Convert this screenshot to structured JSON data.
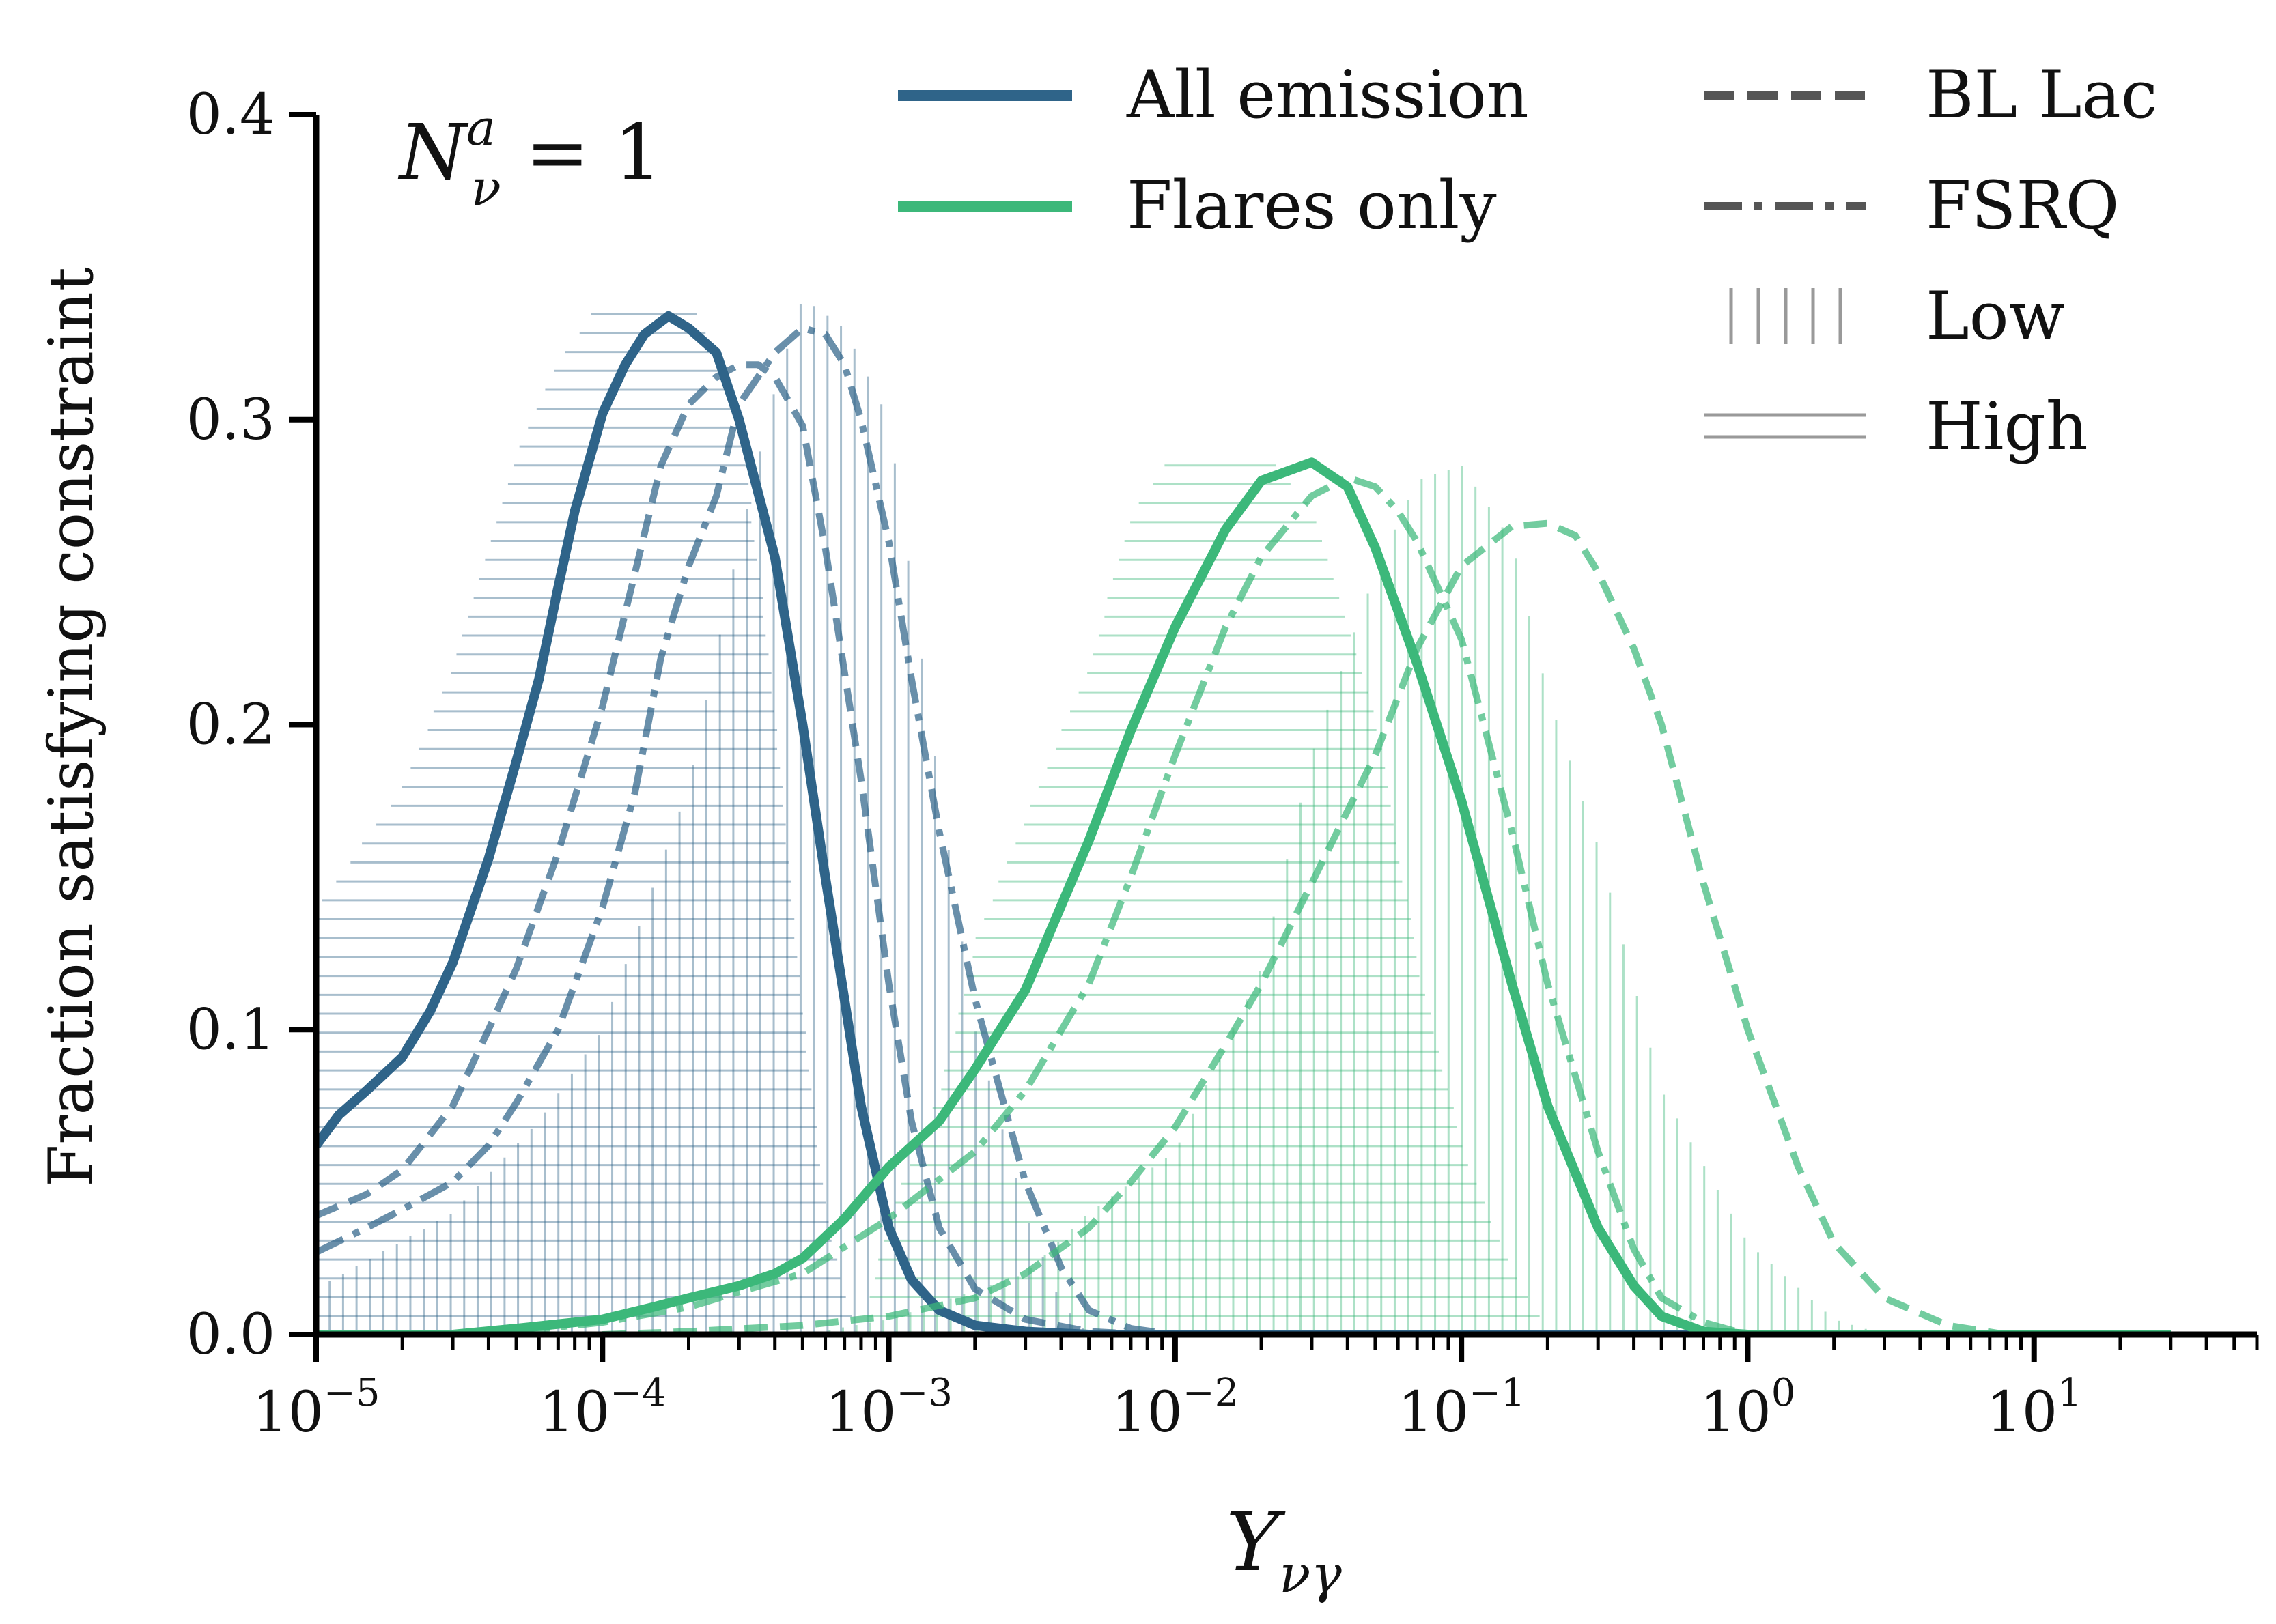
{
  "colors": {
    "all_emission": "#2f6489",
    "flares_only": "#3cb87a",
    "legend_neutral": "#555555",
    "hatch_key": "#999999",
    "axis": "#000000"
  },
  "chart_data": {
    "type": "line",
    "title": "",
    "annotation": {
      "main": "N",
      "sup": "a",
      "sub": "ν",
      "rest": " = 1"
    },
    "xlabel": {
      "main": "Y",
      "sub": "νγ"
    },
    "ylabel": "Fraction satisfying constraint",
    "xscale": "log",
    "xlim": [
      1e-05,
      60
    ],
    "ylim": [
      0,
      0.4
    ],
    "yticks": [
      0.0,
      0.1,
      0.2,
      0.3,
      0.4
    ],
    "ytick_labels": [
      "0.0",
      "0.1",
      "0.2",
      "0.3",
      "0.4"
    ],
    "xticks": [
      1e-05,
      0.0001,
      0.001,
      0.01,
      0.1,
      1,
      10
    ],
    "xtick_labels": [
      {
        "base": "10",
        "exp": "−5"
      },
      {
        "base": "10",
        "exp": "−4"
      },
      {
        "base": "10",
        "exp": "−3"
      },
      {
        "base": "10",
        "exp": "−2"
      },
      {
        "base": "10",
        "exp": "−1"
      },
      {
        "base": "10",
        "exp": "0"
      },
      {
        "base": "10",
        "exp": "1"
      }
    ],
    "grid": false,
    "legend": {
      "placement": "top-right",
      "entries": [
        {
          "label": "All emission",
          "key": "solid",
          "color_key": "all_emission"
        },
        {
          "label": "Flares only",
          "key": "solid",
          "color_key": "flares_only"
        },
        {
          "label": "BL Lac",
          "key": "dashed",
          "color_key": "legend_neutral"
        },
        {
          "label": "FSRQ",
          "key": "dashdot",
          "color_key": "legend_neutral"
        },
        {
          "label": "Low",
          "key": "vertical-hatch",
          "color_key": "hatch_key"
        },
        {
          "label": "High",
          "key": "horizontal-hatch",
          "color_key": "hatch_key"
        }
      ]
    },
    "series": [
      {
        "group": "all_emission",
        "source": "all",
        "style": "solid",
        "points": [
          [
            1e-05,
            0.062
          ],
          [
            1.2e-05,
            0.072
          ],
          [
            1.5e-05,
            0.08
          ],
          [
            2e-05,
            0.091
          ],
          [
            2.5e-05,
            0.106
          ],
          [
            3e-05,
            0.122
          ],
          [
            4e-05,
            0.156
          ],
          [
            5e-05,
            0.188
          ],
          [
            6e-05,
            0.215
          ],
          [
            7e-05,
            0.245
          ],
          [
            8e-05,
            0.27
          ],
          [
            0.0001,
            0.302
          ],
          [
            0.00012,
            0.318
          ],
          [
            0.00014,
            0.328
          ],
          [
            0.00017,
            0.334
          ],
          [
            0.0002,
            0.33
          ],
          [
            0.00025,
            0.322
          ],
          [
            0.0003,
            0.3
          ],
          [
            0.0004,
            0.255
          ],
          [
            0.0005,
            0.2
          ],
          [
            0.0006,
            0.15
          ],
          [
            0.0007,
            0.11
          ],
          [
            0.0008,
            0.075
          ],
          [
            0.001,
            0.035
          ],
          [
            0.0012,
            0.018
          ],
          [
            0.0015,
            0.008
          ],
          [
            0.002,
            0.003
          ],
          [
            0.003,
            0.001
          ],
          [
            0.005,
            0.0
          ],
          [
            0.01,
            0.0
          ],
          [
            0.1,
            0.0
          ],
          [
            1,
            0.0
          ],
          [
            10,
            0.0
          ],
          [
            30,
            0.0
          ]
        ]
      },
      {
        "group": "all_emission",
        "source": "BL Lac",
        "style": "dashed",
        "points": [
          [
            1e-05,
            0.039
          ],
          [
            1.5e-05,
            0.046
          ],
          [
            2e-05,
            0.054
          ],
          [
            3e-05,
            0.075
          ],
          [
            4e-05,
            0.1
          ],
          [
            5e-05,
            0.12
          ],
          [
            7e-05,
            0.158
          ],
          [
            0.0001,
            0.206
          ],
          [
            0.00013,
            0.25
          ],
          [
            0.00016,
            0.285
          ],
          [
            0.0002,
            0.305
          ],
          [
            0.00025,
            0.314
          ],
          [
            0.0003,
            0.318
          ],
          [
            0.00035,
            0.318
          ],
          [
            0.0004,
            0.314
          ],
          [
            0.0005,
            0.298
          ],
          [
            0.0006,
            0.258
          ],
          [
            0.0008,
            0.182
          ],
          [
            0.001,
            0.115
          ],
          [
            0.0012,
            0.07
          ],
          [
            0.0015,
            0.035
          ],
          [
            0.002,
            0.015
          ],
          [
            0.003,
            0.005
          ],
          [
            0.005,
            0.001
          ],
          [
            0.008,
            0.0
          ],
          [
            0.02,
            0.0
          ]
        ]
      },
      {
        "group": "all_emission",
        "source": "FSRQ",
        "style": "dashdot",
        "points": [
          [
            1e-05,
            0.027
          ],
          [
            1.5e-05,
            0.035
          ],
          [
            2e-05,
            0.041
          ],
          [
            3e-05,
            0.05
          ],
          [
            4e-05,
            0.062
          ],
          [
            5e-05,
            0.076
          ],
          [
            7e-05,
            0.1
          ],
          [
            0.0001,
            0.14
          ],
          [
            0.00013,
            0.178
          ],
          [
            0.00016,
            0.222
          ],
          [
            0.0002,
            0.252
          ],
          [
            0.00025,
            0.275
          ],
          [
            0.0003,
            0.305
          ],
          [
            0.0004,
            0.322
          ],
          [
            0.0005,
            0.33
          ],
          [
            0.0006,
            0.328
          ],
          [
            0.0007,
            0.318
          ],
          [
            0.0008,
            0.3
          ],
          [
            0.001,
            0.26
          ],
          [
            0.0012,
            0.215
          ],
          [
            0.0015,
            0.165
          ],
          [
            0.002,
            0.11
          ],
          [
            0.003,
            0.05
          ],
          [
            0.004,
            0.022
          ],
          [
            0.005,
            0.008
          ],
          [
            0.007,
            0.002
          ],
          [
            0.01,
            0.0
          ],
          [
            0.02,
            0.0
          ]
        ]
      },
      {
        "group": "flares_only",
        "source": "all",
        "style": "solid",
        "points": [
          [
            1e-05,
            0.0
          ],
          [
            3e-05,
            0.0
          ],
          [
            5e-05,
            0.002
          ],
          [
            8e-05,
            0.004
          ],
          [
            0.0001,
            0.005
          ],
          [
            0.00015,
            0.009
          ],
          [
            0.0002,
            0.012
          ],
          [
            0.0003,
            0.016
          ],
          [
            0.0004,
            0.02
          ],
          [
            0.0005,
            0.025
          ],
          [
            0.0007,
            0.038
          ],
          [
            0.001,
            0.055
          ],
          [
            0.0015,
            0.07
          ],
          [
            0.002,
            0.087
          ],
          [
            0.003,
            0.113
          ],
          [
            0.005,
            0.162
          ],
          [
            0.007,
            0.198
          ],
          [
            0.01,
            0.232
          ],
          [
            0.015,
            0.264
          ],
          [
            0.02,
            0.28
          ],
          [
            0.03,
            0.286
          ],
          [
            0.04,
            0.278
          ],
          [
            0.05,
            0.258
          ],
          [
            0.07,
            0.22
          ],
          [
            0.1,
            0.175
          ],
          [
            0.15,
            0.115
          ],
          [
            0.2,
            0.075
          ],
          [
            0.3,
            0.035
          ],
          [
            0.4,
            0.016
          ],
          [
            0.5,
            0.006
          ],
          [
            0.7,
            0.001
          ],
          [
            1,
            0.0
          ],
          [
            3,
            0.0
          ],
          [
            10,
            0.0
          ],
          [
            30,
            0.0
          ]
        ]
      },
      {
        "group": "flares_only",
        "source": "BL Lac",
        "style": "dashed",
        "points": [
          [
            0.0001,
            0.0
          ],
          [
            0.0002,
            0.001
          ],
          [
            0.0005,
            0.003
          ],
          [
            0.001,
            0.006
          ],
          [
            0.002,
            0.012
          ],
          [
            0.003,
            0.02
          ],
          [
            0.005,
            0.035
          ],
          [
            0.007,
            0.05
          ],
          [
            0.01,
            0.068
          ],
          [
            0.015,
            0.095
          ],
          [
            0.02,
            0.115
          ],
          [
            0.03,
            0.148
          ],
          [
            0.05,
            0.19
          ],
          [
            0.07,
            0.225
          ],
          [
            0.1,
            0.252
          ],
          [
            0.15,
            0.265
          ],
          [
            0.2,
            0.266
          ],
          [
            0.25,
            0.262
          ],
          [
            0.3,
            0.25
          ],
          [
            0.4,
            0.225
          ],
          [
            0.5,
            0.2
          ],
          [
            0.7,
            0.148
          ],
          [
            1,
            0.1
          ],
          [
            1.5,
            0.055
          ],
          [
            2,
            0.03
          ],
          [
            3,
            0.012
          ],
          [
            5,
            0.003
          ],
          [
            8,
            0.0
          ],
          [
            20,
            0.0
          ]
        ]
      },
      {
        "group": "flares_only",
        "source": "FSRQ",
        "style": "dashdot",
        "points": [
          [
            2e-05,
            0.0
          ],
          [
            5e-05,
            0.001
          ],
          [
            0.0001,
            0.004
          ],
          [
            0.0002,
            0.009
          ],
          [
            0.0003,
            0.014
          ],
          [
            0.0005,
            0.02
          ],
          [
            0.001,
            0.038
          ],
          [
            0.002,
            0.06
          ],
          [
            0.003,
            0.08
          ],
          [
            0.005,
            0.115
          ],
          [
            0.007,
            0.15
          ],
          [
            0.01,
            0.19
          ],
          [
            0.015,
            0.232
          ],
          [
            0.02,
            0.255
          ],
          [
            0.03,
            0.275
          ],
          [
            0.04,
            0.281
          ],
          [
            0.05,
            0.278
          ],
          [
            0.06,
            0.27
          ],
          [
            0.07,
            0.26
          ],
          [
            0.1,
            0.228
          ],
          [
            0.15,
            0.165
          ],
          [
            0.2,
            0.115
          ],
          [
            0.3,
            0.06
          ],
          [
            0.4,
            0.028
          ],
          [
            0.5,
            0.012
          ],
          [
            0.7,
            0.004
          ],
          [
            1,
            0.0
          ],
          [
            3,
            0.0
          ]
        ]
      }
    ],
    "hatch_regions": [
      {
        "group": "all_emission",
        "bin": "High",
        "hatch": "horizontal",
        "points": [
          [
            1e-05,
            0.14
          ],
          [
            2e-05,
            0.18
          ],
          [
            3e-05,
            0.22
          ],
          [
            4e-05,
            0.26
          ],
          [
            5e-05,
            0.29
          ],
          [
            7e-05,
            0.32
          ],
          [
            0.0001,
            0.34
          ],
          [
            0.0002,
            0.34
          ],
          [
            0.0003,
            0.3
          ],
          [
            0.0004,
            0.2
          ],
          [
            0.0005,
            0.1
          ],
          [
            0.0006,
            0.04
          ],
          [
            0.0007,
            0.01
          ],
          [
            0.0008,
            0.0
          ]
        ]
      },
      {
        "group": "all_emission",
        "bin": "Low",
        "hatch": "vertical",
        "points": [
          [
            1e-05,
            0.015
          ],
          [
            3e-05,
            0.04
          ],
          [
            6e-05,
            0.07
          ],
          [
            0.0001,
            0.1
          ],
          [
            0.0002,
            0.18
          ],
          [
            0.0003,
            0.26
          ],
          [
            0.0004,
            0.31
          ],
          [
            0.0005,
            0.34
          ],
          [
            0.0007,
            0.33
          ],
          [
            0.001,
            0.3
          ],
          [
            0.0015,
            0.18
          ],
          [
            0.002,
            0.1
          ],
          [
            0.003,
            0.04
          ],
          [
            0.004,
            0.01
          ],
          [
            0.005,
            0.0
          ]
        ]
      },
      {
        "group": "flares_only",
        "bin": "High",
        "hatch": "horizontal",
        "points": [
          [
            0.0008,
            0.0
          ],
          [
            0.001,
            0.04
          ],
          [
            0.0015,
            0.08
          ],
          [
            0.002,
            0.13
          ],
          [
            0.003,
            0.17
          ],
          [
            0.005,
            0.22
          ],
          [
            0.007,
            0.27
          ],
          [
            0.01,
            0.29
          ],
          [
            0.02,
            0.29
          ],
          [
            0.03,
            0.27
          ],
          [
            0.05,
            0.2
          ],
          [
            0.07,
            0.12
          ],
          [
            0.1,
            0.06
          ],
          [
            0.15,
            0.02
          ],
          [
            0.2,
            0.0
          ]
        ]
      },
      {
        "group": "flares_only",
        "bin": "Low",
        "hatch": "vertical",
        "points": [
          [
            0.0005,
            0.0
          ],
          [
            0.001,
            0.005
          ],
          [
            0.003,
            0.02
          ],
          [
            0.005,
            0.04
          ],
          [
            0.01,
            0.06
          ],
          [
            0.02,
            0.12
          ],
          [
            0.03,
            0.19
          ],
          [
            0.05,
            0.25
          ],
          [
            0.07,
            0.28
          ],
          [
            0.1,
            0.285
          ],
          [
            0.15,
            0.26
          ],
          [
            0.2,
            0.21
          ],
          [
            0.3,
            0.16
          ],
          [
            0.5,
            0.08
          ],
          [
            1,
            0.03
          ],
          [
            2,
            0.005
          ],
          [
            3,
            0.0
          ]
        ]
      }
    ]
  }
}
